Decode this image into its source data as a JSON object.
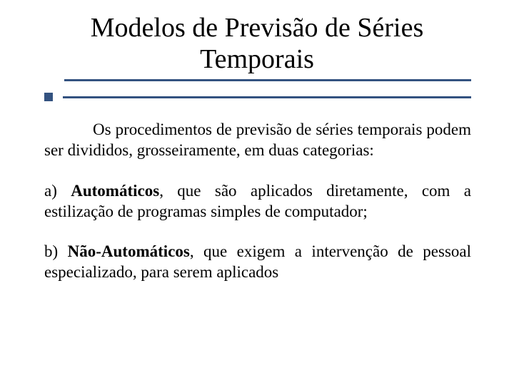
{
  "colors": {
    "rule": "#335280",
    "text": "#000000",
    "background": "#ffffff"
  },
  "typography": {
    "title_fontsize": 38,
    "body_fontsize": 23,
    "font_family": "Georgia, 'Times New Roman', serif"
  },
  "title": {
    "line1": "Modelos de Previsão de Séries",
    "line2": "Temporais"
  },
  "intro": "Os procedimentos de previsão de séries temporais podem ser divididos, grosseiramente, em duas categorias:",
  "item_a": {
    "prefix": " a) ",
    "bold": "Automáticos",
    "rest": ", que são aplicados diretamente, com a estilização de programas simples de computador;"
  },
  "item_b": {
    "prefix": "b) ",
    "bold": "Não-Automáticos",
    "rest": ", que exigem a intervenção de pessoal especializado, para serem aplicados"
  }
}
